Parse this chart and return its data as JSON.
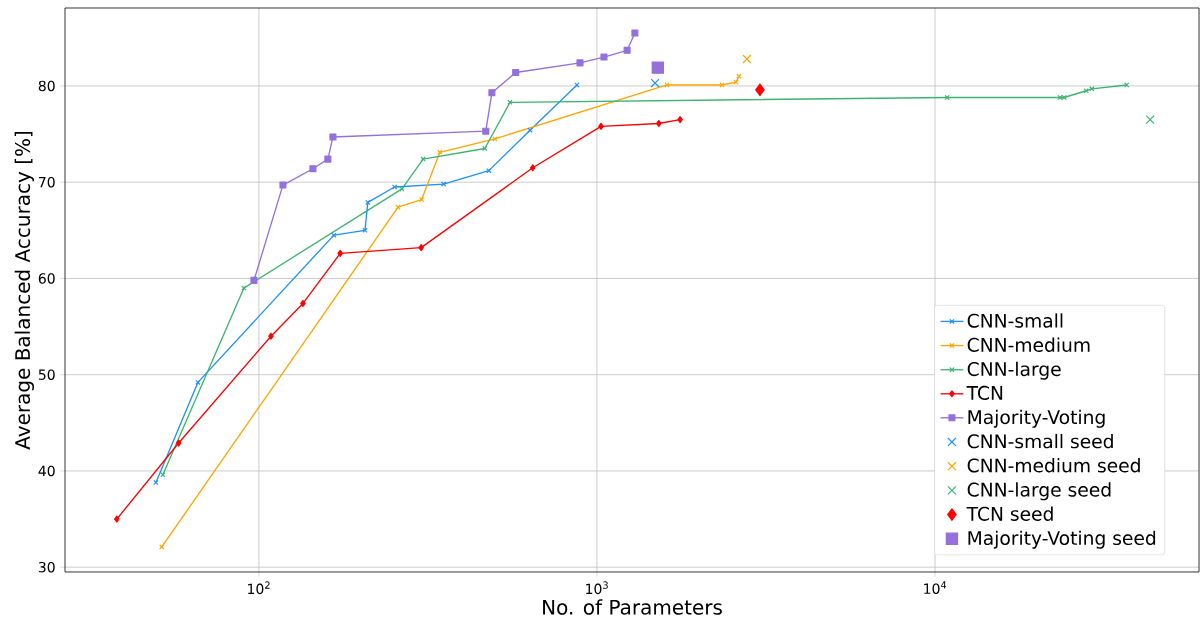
{
  "chart_data": {
    "type": "line",
    "xlabel": "No. of Parameters",
    "ylabel": "Average Balanced Accuracy [%]",
    "log": "x",
    "grid": true,
    "legend": "bottom right",
    "xlim": [
      26.7,
      60400
    ],
    "ylim": [
      29.5,
      88.1
    ],
    "xticks": [
      {
        "value": 100,
        "label": "10$^{2}$"
      },
      {
        "value": 1000,
        "label": "10$^{3}$"
      },
      {
        "value": 10000,
        "label": "10$^{4}$"
      }
    ],
    "yticks": [
      30,
      40,
      50,
      60,
      70,
      80
    ],
    "series": [
      {
        "name": "CNN-small",
        "marker": "cross",
        "color": "#1e90ff",
        "x": [
          49.6,
          66.0,
          166.7,
          206,
          210,
          252,
          352,
          479,
          634,
          873
        ],
        "values": [
          38.8,
          49.2,
          64.5,
          65.0,
          67.9,
          69.5,
          69.8,
          71.2,
          75.4,
          80.1
        ]
      },
      {
        "name": "CNN-medium",
        "marker": "cross",
        "color": "#ffa500",
        "x": [
          51.6,
          258,
          303,
          343,
          499,
          1611,
          2344,
          2579,
          2630
        ],
        "values": [
          32.1,
          67.4,
          68.2,
          73.1,
          74.5,
          80.1,
          80.1,
          80.4,
          81.0
        ]
      },
      {
        "name": "CNN-large",
        "marker": "cross",
        "color": "#3cb371",
        "x": [
          52.0,
          90.3,
          265,
          306,
          466,
          553,
          10860,
          23440,
          24100,
          28000,
          29100,
          36900
        ],
        "values": [
          39.6,
          59.0,
          69.3,
          72.4,
          73.5,
          78.3,
          78.8,
          78.8,
          78.8,
          79.5,
          79.7,
          80.1
        ]
      },
      {
        "name": "TCN",
        "marker": "diamond",
        "color": "#ff0000",
        "x": [
          38.0,
          57.9,
          108.6,
          135,
          174,
          302,
          646,
          1028,
          1524,
          1762
        ],
        "values": [
          35.0,
          42.9,
          54.0,
          57.4,
          62.6,
          63.2,
          71.5,
          75.8,
          76.1,
          76.5
        ]
      },
      {
        "name": "Majority-Voting",
        "marker": "square",
        "color": "#9370db",
        "x": [
          96.7,
          117.8,
          144.5,
          160,
          165.6,
          469,
          489,
          575,
          891,
          1049,
          1228,
          1295
        ],
        "values": [
          59.8,
          69.7,
          71.4,
          72.4,
          74.7,
          75.3,
          79.3,
          81.4,
          82.4,
          83.0,
          83.7,
          85.5
        ]
      },
      {
        "name": "CNN-small seed",
        "type": "scatter",
        "marker": "cross",
        "color": "#1e90ff",
        "x": [
          1486
        ],
        "values": [
          80.3
        ]
      },
      {
        "name": "CNN-medium seed",
        "type": "scatter",
        "marker": "cross",
        "color": "#ffa500",
        "x": [
          2778
        ],
        "values": [
          82.8
        ]
      },
      {
        "name": "CNN-large seed",
        "type": "scatter",
        "marker": "cross",
        "color": "#3cb371",
        "x": [
          43300
        ],
        "values": [
          76.5
        ]
      },
      {
        "name": "TCN seed",
        "type": "scatter",
        "marker": "diamond",
        "color": "#ff0000",
        "x": [
          3035
        ],
        "values": [
          79.6
        ]
      },
      {
        "name": "Majority-Voting seed",
        "type": "scatter",
        "marker": "square",
        "color": "#9370db",
        "x": [
          1514
        ],
        "values": [
          81.9
        ]
      }
    ]
  }
}
